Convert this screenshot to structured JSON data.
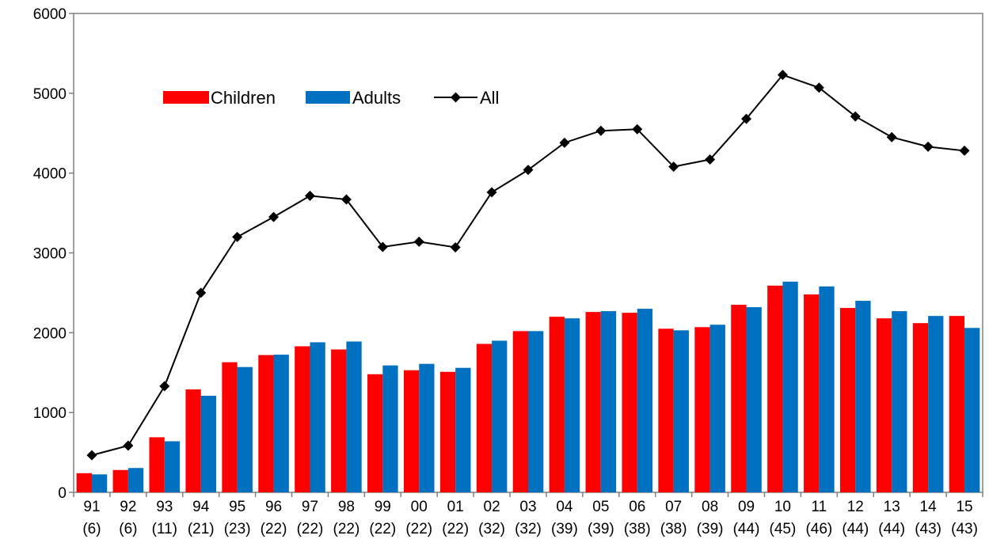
{
  "chart_data": {
    "type": "bar",
    "title": "",
    "xlabel": "",
    "ylabel": "",
    "ylim": [
      0,
      6000
    ],
    "yticks": [
      0,
      1000,
      2000,
      3000,
      4000,
      5000,
      6000
    ],
    "grid": false,
    "legend_position": "top-left",
    "categories": [
      "91",
      "92",
      "93",
      "94",
      "95",
      "96",
      "97",
      "98",
      "99",
      "00",
      "01",
      "02",
      "03",
      "04",
      "05",
      "06",
      "07",
      "08",
      "09",
      "10",
      "11",
      "12",
      "13",
      "14",
      "15"
    ],
    "category_sublabels": [
      "(6)",
      "(6)",
      "(11)",
      "(21)",
      "(23)",
      "(22)",
      "(22)",
      "(22)",
      "(22)",
      "(22)",
      "(22)",
      "(32)",
      "(32)",
      "(39)",
      "(39)",
      "(38)",
      "(38)",
      "(39)",
      "(44)",
      "(45)",
      "(46)",
      "(44)",
      "(44)",
      "(43)",
      "(43)"
    ],
    "series": [
      {
        "name": "Children",
        "type": "bar",
        "color": "#ff0000",
        "values": [
          240,
          280,
          690,
          1290,
          1630,
          1720,
          1830,
          1790,
          1480,
          1530,
          1510,
          1860,
          2020,
          2200,
          2260,
          2250,
          2050,
          2070,
          2350,
          2590,
          2480,
          2310,
          2180,
          2120,
          2210
        ]
      },
      {
        "name": "Adults",
        "type": "bar",
        "color": "#0070c0",
        "values": [
          225,
          305,
          640,
          1210,
          1570,
          1725,
          1880,
          1890,
          1590,
          1610,
          1560,
          1900,
          2020,
          2180,
          2270,
          2300,
          2030,
          2100,
          2320,
          2640,
          2580,
          2400,
          2270,
          2210,
          2060
        ]
      },
      {
        "name": "All",
        "type": "line",
        "color": "#000000",
        "values": [
          465,
          585,
          1330,
          2500,
          3200,
          3450,
          3715,
          3670,
          3075,
          3140,
          3070,
          3760,
          4040,
          4380,
          4530,
          4550,
          4080,
          4170,
          4680,
          5230,
          5070,
          4710,
          4450,
          4330,
          4280
        ]
      }
    ]
  }
}
